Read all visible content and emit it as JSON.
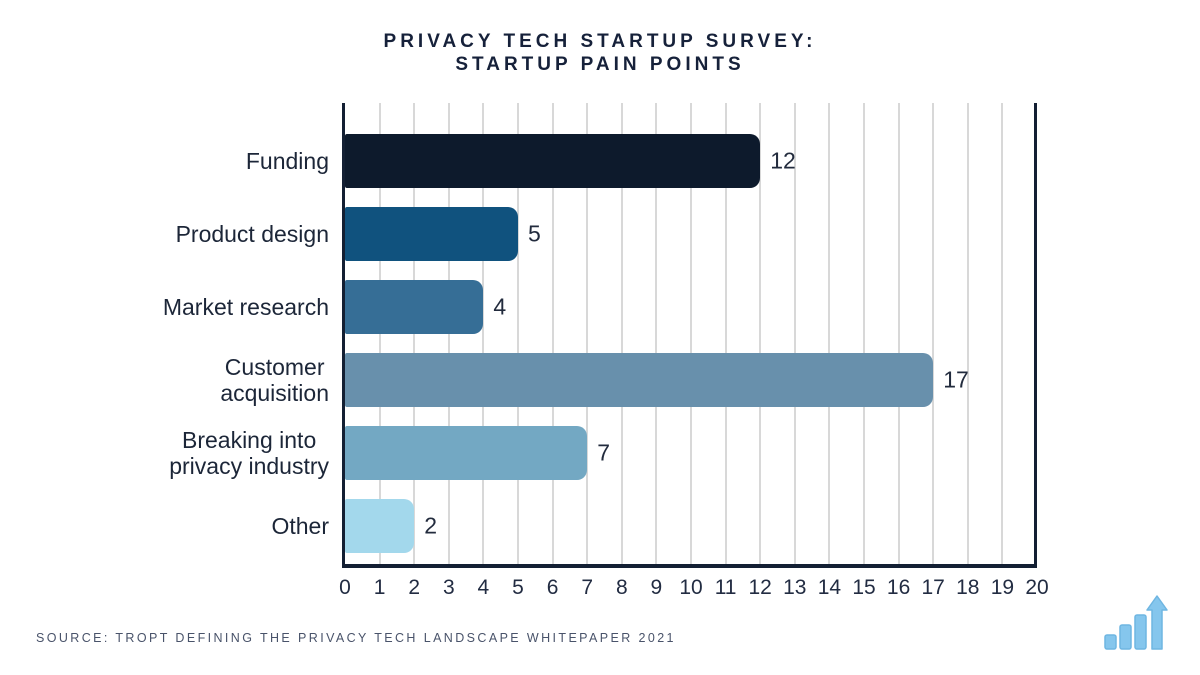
{
  "title": {
    "line1": "PRIVACY TECH STARTUP SURVEY:",
    "line2": "STARTUP PAIN POINTS"
  },
  "source": {
    "text": "SOURCE: TROPT DEFINING THE PRIVACY TECH LANDSCAPE WHITEPAPER 2021"
  },
  "logo": {
    "name": "ascending-bar-chart-with-arrow",
    "color": "#85c6ed"
  },
  "colors": {
    "background": "#ffffff",
    "title_text": "#16213a",
    "axis_line": "#131f33",
    "gridline": "#d8d8d8",
    "tick_text": "#222c42",
    "label_text": "#1c2638",
    "value_text": "#222b3d",
    "source_text": "#49536a"
  },
  "chart_data": {
    "type": "bar",
    "orientation": "horizontal",
    "title": "PRIVACY TECH STARTUP SURVEY: STARTUP PAIN POINTS",
    "categories": [
      "Funding",
      "Product design",
      "Market research",
      "Customer acquisition",
      "Breaking into privacy industry",
      "Other"
    ],
    "label_lines": [
      [
        "Funding"
      ],
      [
        "Product design"
      ],
      [
        "Market research"
      ],
      [
        "Customer",
        "acquisition"
      ],
      [
        "Breaking into",
        "privacy industry"
      ],
      [
        "Other"
      ]
    ],
    "values": [
      12,
      5,
      4,
      17,
      7,
      2
    ],
    "value_labels": [
      "12",
      "5",
      "4",
      "17",
      "7",
      "2"
    ],
    "bar_colors": [
      "#0d1a2c",
      "#10527e",
      "#366e96",
      "#6890ac",
      "#73a8c3",
      "#a3d8ec"
    ],
    "xlim": [
      0,
      20
    ],
    "xticks": [
      0,
      1,
      2,
      3,
      4,
      5,
      6,
      7,
      8,
      9,
      10,
      11,
      12,
      13,
      14,
      15,
      16,
      17,
      18,
      19,
      20
    ],
    "grid": "vertical",
    "legend": "none"
  }
}
